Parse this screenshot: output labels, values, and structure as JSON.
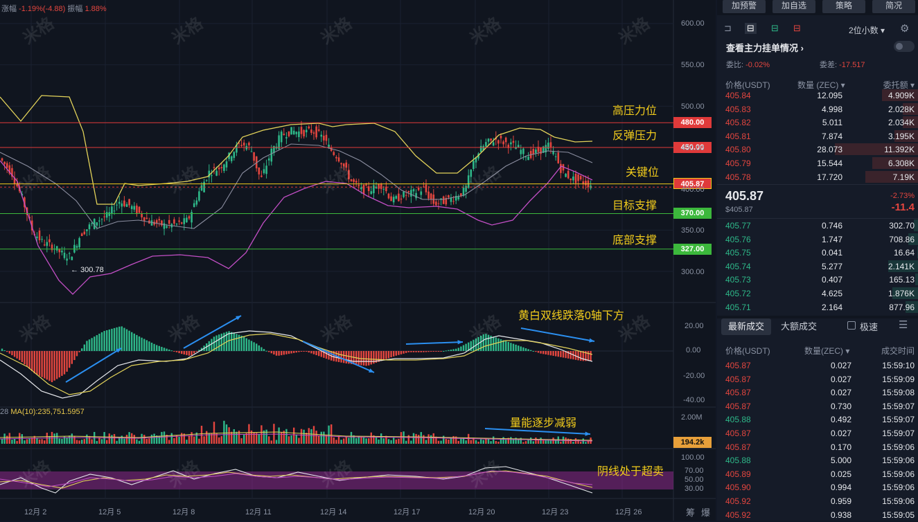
{
  "header": {
    "amplitude_label": "涨幅",
    "amplitude_value": "-1.19%(-4.88)",
    "range_label": "振幅",
    "range_value": "1.88%"
  },
  "watermark": "米格",
  "annotations": {
    "high_resistance": "高压力位",
    "rebound_resistance": "反弹压力",
    "key_level": "关键位",
    "target_support": "目标支撑",
    "bottom_support": "底部支撑",
    "macd_note": "黄白双线跌落0轴下方",
    "volume_note": "量能逐步减弱",
    "kdj_note": "阴线处于超卖",
    "low_marker": "← 300.78"
  },
  "levels": [
    {
      "label": "480.00",
      "color": "#e03a3a"
    },
    {
      "label": "450.00",
      "color": "#e03a3a"
    },
    {
      "label": "405.87",
      "color": "#e03a3a"
    },
    {
      "label": "370.00",
      "color": "#3cb83c"
    },
    {
      "label": "327.00",
      "color": "#3cb83c"
    }
  ],
  "price_axis": [
    "600.00",
    "550.00",
    "500.00",
    "450.00",
    "400.00",
    "350.00",
    "300.00"
  ],
  "macd_axis": [
    "20.00",
    "0.00",
    "-20.00",
    "-40.00"
  ],
  "volume_axis": {
    "top": "2.00M",
    "badge": "194.2k"
  },
  "kdj_axis": [
    "100.00",
    "70.00",
    "50.00",
    "30.00"
  ],
  "ma10": {
    "prefix": "28",
    "label": "MA(10):235,751.5957"
  },
  "x_axis": [
    "12月 2",
    "12月 5",
    "12月 8",
    "12月 11",
    "12月 14",
    "12月 17",
    "12月 20",
    "12月 23",
    "12月 26"
  ],
  "x_axis_extra": [
    "筹",
    "爆"
  ],
  "panel": {
    "buttons": [
      "加预警",
      "加自选",
      "策略",
      "简况"
    ],
    "decimal": "2位小数 ▾",
    "book_title": "查看主力挂单情况 ›",
    "ratio_label": "委比:",
    "ratio_value": "-0.02%",
    "diff_label": "委差:",
    "diff_value": "-17.517",
    "col_price": "价格(USDT)",
    "col_qty": "数量 (ZEC) ▾",
    "col_total": "委托额 ▾",
    "asks": [
      {
        "price": "405.84",
        "qty": "12.095",
        "total": "4.909K",
        "depth": 0.43
      },
      {
        "price": "405.83",
        "qty": "4.998",
        "total": "2.028K",
        "depth": 0.18
      },
      {
        "price": "405.82",
        "qty": "5.011",
        "total": "2.034K",
        "depth": 0.18
      },
      {
        "price": "405.81",
        "qty": "7.874",
        "total": "3.195K",
        "depth": 0.28
      },
      {
        "price": "405.80",
        "qty": "28.073",
        "total": "11.392K",
        "depth": 1.0
      },
      {
        "price": "405.79",
        "qty": "15.544",
        "total": "6.308K",
        "depth": 0.55
      },
      {
        "price": "405.78",
        "qty": "17.720",
        "total": "7.19K",
        "depth": 0.63
      }
    ],
    "last_price": "405.87",
    "last_sub": "$405.87",
    "change_pct": "-2.73%",
    "change_abs": "-11.4",
    "bids": [
      {
        "price": "405.77",
        "qty": "0.746",
        "total": "302.70",
        "depth": 0.05
      },
      {
        "price": "405.76",
        "qty": "1.747",
        "total": "708.86",
        "depth": 0.12
      },
      {
        "price": "405.75",
        "qty": "0.041",
        "total": "16.64",
        "depth": 0.01
      },
      {
        "price": "405.74",
        "qty": "5.277",
        "total": "2.141K",
        "depth": 0.36
      },
      {
        "price": "405.73",
        "qty": "0.407",
        "total": "165.13",
        "depth": 0.03
      },
      {
        "price": "405.72",
        "qty": "4.625",
        "total": "1.876K",
        "depth": 0.31
      },
      {
        "price": "405.71",
        "qty": "2.164",
        "total": "877.96",
        "depth": 0.15
      }
    ],
    "tab_latest": "最新成交",
    "tab_large": "大额成交",
    "fast_label": "极速",
    "trade_col_price": "价格(USDT)",
    "trade_col_qty": "数量(ZEC) ▾",
    "trade_col_time": "成交时间",
    "trades": [
      {
        "price": "405.87",
        "qty": "0.027",
        "time": "15:59:10",
        "side": "r"
      },
      {
        "price": "405.87",
        "qty": "0.027",
        "time": "15:59:09",
        "side": "r"
      },
      {
        "price": "405.87",
        "qty": "0.027",
        "time": "15:59:08",
        "side": "r"
      },
      {
        "price": "405.87",
        "qty": "0.730",
        "time": "15:59:07",
        "side": "r"
      },
      {
        "price": "405.88",
        "qty": "0.492",
        "time": "15:59:07",
        "side": "g"
      },
      {
        "price": "405.87",
        "qty": "0.027",
        "time": "15:59:07",
        "side": "r"
      },
      {
        "price": "405.87",
        "qty": "0.170",
        "time": "15:59:06",
        "side": "r"
      },
      {
        "price": "405.88",
        "qty": "5.000",
        "time": "15:59:06",
        "side": "g"
      },
      {
        "price": "405.89",
        "qty": "0.025",
        "time": "15:59:06",
        "side": "r"
      },
      {
        "price": "405.90",
        "qty": "0.994",
        "time": "15:59:06",
        "side": "r"
      },
      {
        "price": "405.92",
        "qty": "0.959",
        "time": "15:59:06",
        "side": "r"
      },
      {
        "price": "405.92",
        "qty": "0.938",
        "time": "15:59:05",
        "side": "r"
      }
    ]
  }
}
